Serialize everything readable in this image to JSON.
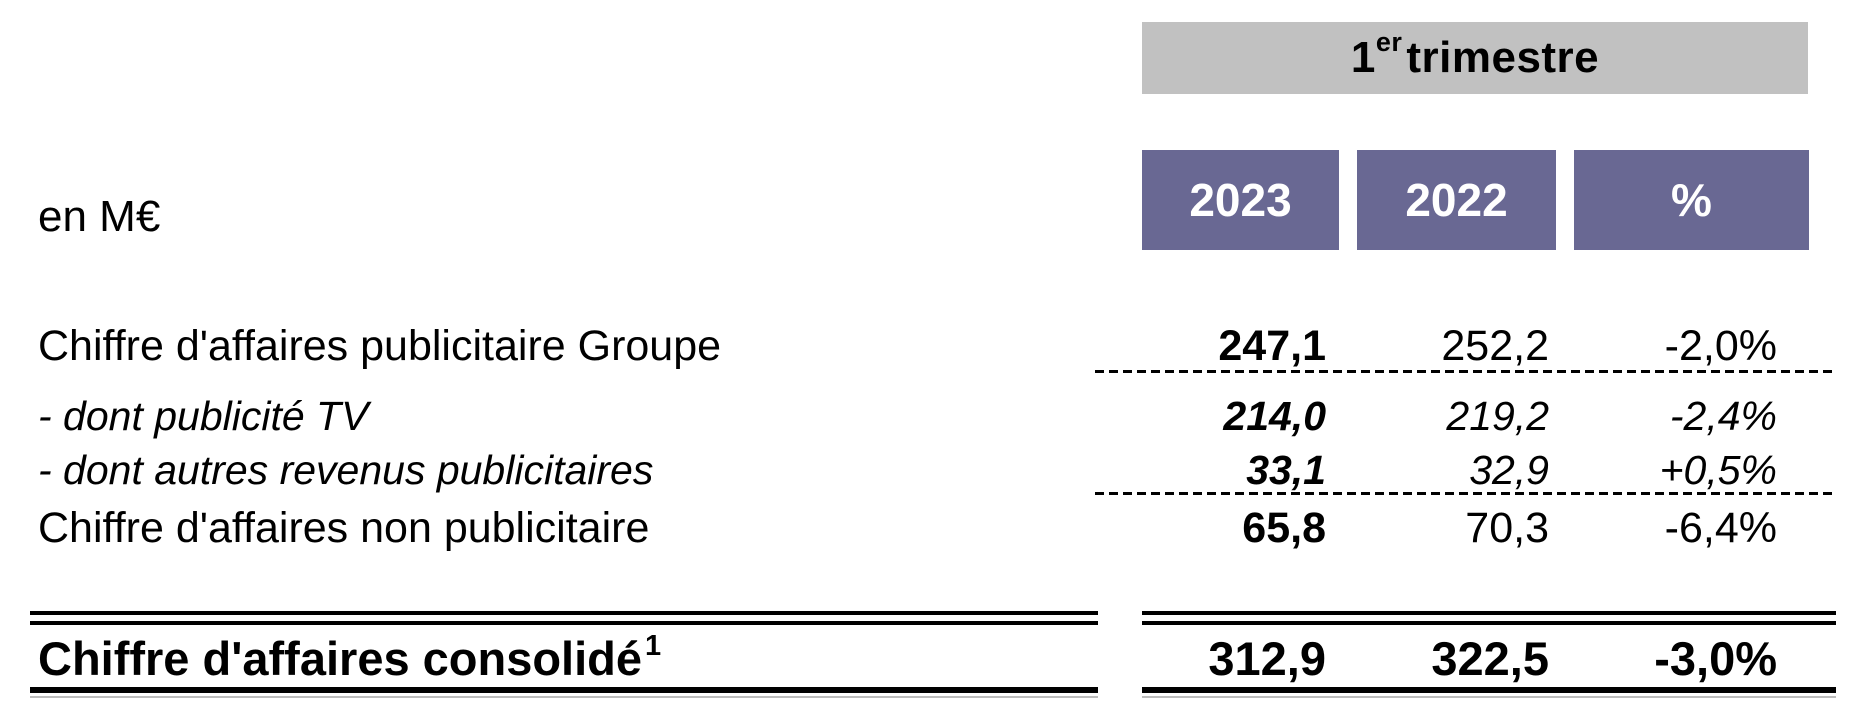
{
  "unit_label": "en M€",
  "period_header": {
    "num": "1",
    "sup": "er",
    "rest": "trimestre"
  },
  "columns": [
    {
      "label": "2023"
    },
    {
      "label": "2022"
    },
    {
      "label": "%"
    }
  ],
  "rows": [
    {
      "label": "Chiffre d'affaires publicitaire Groupe",
      "y2023": "247,1",
      "y2022": "252,2",
      "pct": "-2,0%"
    },
    {
      "label": "- dont publicité TV",
      "y2023": "214,0",
      "y2022": "219,2",
      "pct": "-2,4%"
    },
    {
      "label": "- dont autres revenus publicitaires",
      "y2023": "33,1",
      "y2022": "32,9",
      "pct": "+0,5%"
    },
    {
      "label": "Chiffre d'affaires non publicitaire",
      "y2023": "65,8",
      "y2022": "70,3",
      "pct": "-6,4%"
    },
    {
      "label": "Chiffre d'affaires consolidé",
      "footnote_marker": "1",
      "y2023": "312,9",
      "y2022": "322,5",
      "pct": "-3,0%"
    }
  ],
  "colors": {
    "header_bg": "#c1c1c1",
    "column_header_bg": "#696893",
    "column_header_text": "#ffffff",
    "text": "#000000"
  }
}
